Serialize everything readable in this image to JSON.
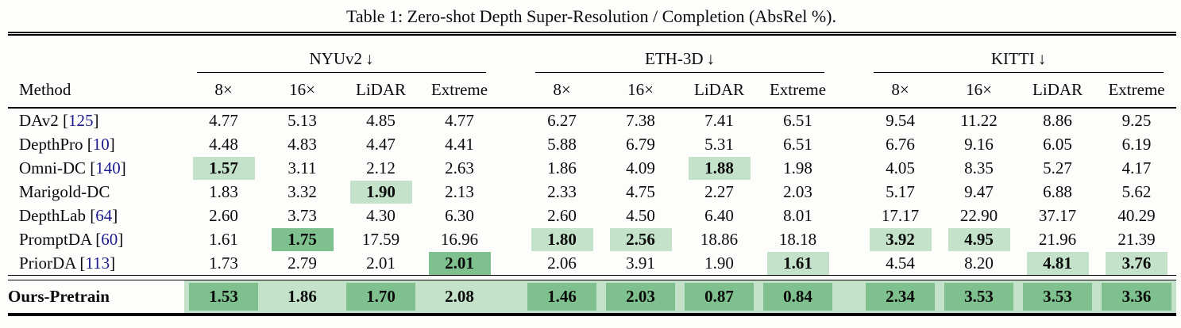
{
  "title": "Table 1: Zero-shot Depth Super-Resolution / Completion (AbsRel %).",
  "colors": {
    "best_green": "#7ec08e",
    "second_green": "#c4e1c9",
    "citation_blue": "#1b1b8e"
  },
  "header": {
    "method_label": "Method",
    "groups": [
      {
        "label": "NYUv2",
        "arrow": "↓"
      },
      {
        "label": "ETH-3D",
        "arrow": "↓"
      },
      {
        "label": "KITTI",
        "arrow": "↓"
      }
    ],
    "subcolumns": [
      "8×",
      "16×",
      "LiDAR",
      "Extreme"
    ]
  },
  "chart_data": {
    "type": "table",
    "title": "Zero-shot Depth Super-Resolution / Completion (AbsRel %)",
    "column_groups": [
      "NYUv2",
      "ETH-3D",
      "KITTI"
    ],
    "columns_per_group": [
      "8×",
      "16×",
      "LiDAR",
      "Extreme"
    ],
    "highlight_legend": {
      "best": "dark green + bold",
      "second": "light green + bold"
    }
  },
  "rows": [
    {
      "method": "DAv2",
      "ref": "125",
      "values": [
        "4.77",
        "5.13",
        "4.85",
        "4.77",
        "6.27",
        "7.38",
        "7.41",
        "6.51",
        "9.54",
        "11.22",
        "8.86",
        "9.25"
      ],
      "marks": [
        "",
        "",
        "",
        "",
        "",
        "",
        "",
        "",
        "",
        "",
        "",
        ""
      ]
    },
    {
      "method": "DepthPro",
      "ref": "10",
      "values": [
        "4.48",
        "4.83",
        "4.47",
        "4.41",
        "5.88",
        "6.79",
        "5.31",
        "6.51",
        "6.76",
        "9.16",
        "6.05",
        "6.19"
      ],
      "marks": [
        "",
        "",
        "",
        "",
        "",
        "",
        "",
        "",
        "",
        "",
        "",
        ""
      ]
    },
    {
      "method": "Omni-DC",
      "ref": "140",
      "values": [
        "1.57",
        "3.11",
        "2.12",
        "2.63",
        "1.86",
        "4.09",
        "1.88",
        "1.98",
        "4.05",
        "8.35",
        "5.27",
        "4.17"
      ],
      "marks": [
        "second",
        "",
        "",
        "",
        "",
        "",
        "second",
        "",
        "",
        "",
        "",
        ""
      ]
    },
    {
      "method": "Marigold-DC",
      "ref": null,
      "values": [
        "1.83",
        "3.32",
        "1.90",
        "2.13",
        "2.33",
        "4.75",
        "2.27",
        "2.03",
        "5.17",
        "9.47",
        "6.88",
        "5.62"
      ],
      "marks": [
        "",
        "",
        "second",
        "",
        "",
        "",
        "",
        "",
        "",
        "",
        "",
        ""
      ]
    },
    {
      "method": "DepthLab",
      "ref": "64",
      "values": [
        "2.60",
        "3.73",
        "4.30",
        "6.30",
        "2.60",
        "4.50",
        "6.40",
        "8.01",
        "17.17",
        "22.90",
        "37.17",
        "40.29"
      ],
      "marks": [
        "",
        "",
        "",
        "",
        "",
        "",
        "",
        "",
        "",
        "",
        "",
        ""
      ]
    },
    {
      "method": "PromptDA",
      "ref": "60",
      "values": [
        "1.61",
        "1.75",
        "17.59",
        "16.96",
        "1.80",
        "2.56",
        "18.86",
        "18.18",
        "3.92",
        "4.95",
        "21.96",
        "21.39"
      ],
      "marks": [
        "",
        "best",
        "",
        "",
        "second",
        "second",
        "",
        "",
        "second",
        "second",
        "",
        ""
      ]
    },
    {
      "method": "PriorDA",
      "ref": "113",
      "values": [
        "1.73",
        "2.79",
        "2.01",
        "2.01",
        "2.06",
        "3.91",
        "1.90",
        "1.61",
        "4.54",
        "8.20",
        "4.81",
        "3.76"
      ],
      "marks": [
        "",
        "",
        "",
        "best",
        "",
        "",
        "",
        "second",
        "",
        "",
        "second",
        "second"
      ]
    }
  ],
  "ours_row": {
    "method": "Ours-Pretrain",
    "ref": null,
    "values": [
      "1.53",
      "1.86",
      "1.70",
      "2.08",
      "1.46",
      "2.03",
      "0.87",
      "0.84",
      "2.34",
      "3.53",
      "3.53",
      "3.36"
    ],
    "marks": [
      "best",
      "second",
      "best",
      "second",
      "best",
      "best",
      "best",
      "best",
      "best",
      "best",
      "best",
      "best"
    ]
  }
}
